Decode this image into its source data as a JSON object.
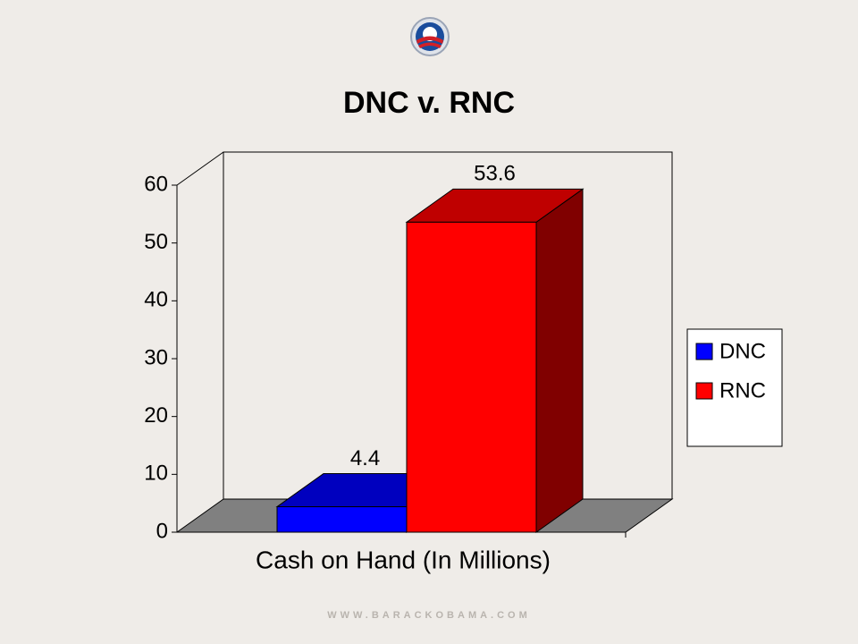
{
  "chart_data": {
    "type": "bar",
    "title": "DNC v. RNC",
    "categories": [
      "Cash on Hand (In Millions)"
    ],
    "series": [
      {
        "name": "DNC",
        "color": "#0000ff",
        "values": [
          4.4
        ]
      },
      {
        "name": "RNC",
        "color": "#ff0000",
        "values": [
          53.6
        ]
      }
    ],
    "ylim": [
      0,
      60
    ],
    "yticks": [
      0,
      10,
      20,
      30,
      40,
      50,
      60
    ],
    "legend": "right",
    "three_d": true,
    "footer": "WWW.BARACKOBAMA.COM"
  }
}
